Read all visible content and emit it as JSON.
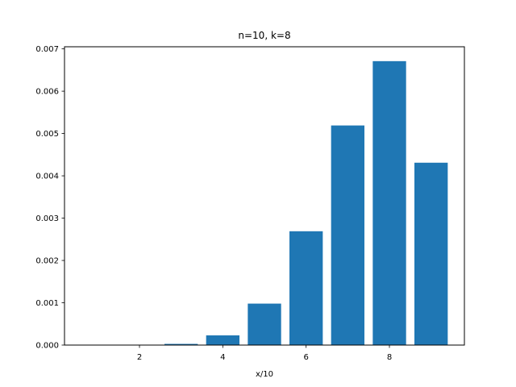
{
  "chart_data": {
    "type": "bar",
    "title": "n=10, k=8",
    "xlabel": "x/10",
    "ylabel": "",
    "x": [
      1,
      2,
      3,
      4,
      5,
      6,
      7,
      8,
      9
    ],
    "values": [
      0.0,
      9e-07,
      2.8e-05,
      0.00023,
      0.00098,
      0.00269,
      0.00519,
      0.00671,
      0.00431
    ],
    "xlim": [
      0.2,
      9.8
    ],
    "ylim": [
      0,
      0.00705
    ],
    "xticks": [
      2,
      4,
      6,
      8
    ],
    "yticks": [
      "0.000",
      "0.001",
      "0.002",
      "0.003",
      "0.004",
      "0.005",
      "0.006",
      "0.007"
    ],
    "ytick_values": [
      0,
      0.001,
      0.002,
      0.003,
      0.004,
      0.005,
      0.006,
      0.007
    ],
    "bar_width": 0.8,
    "bar_color": "#1f77b4",
    "grid": false,
    "legend": "none"
  }
}
